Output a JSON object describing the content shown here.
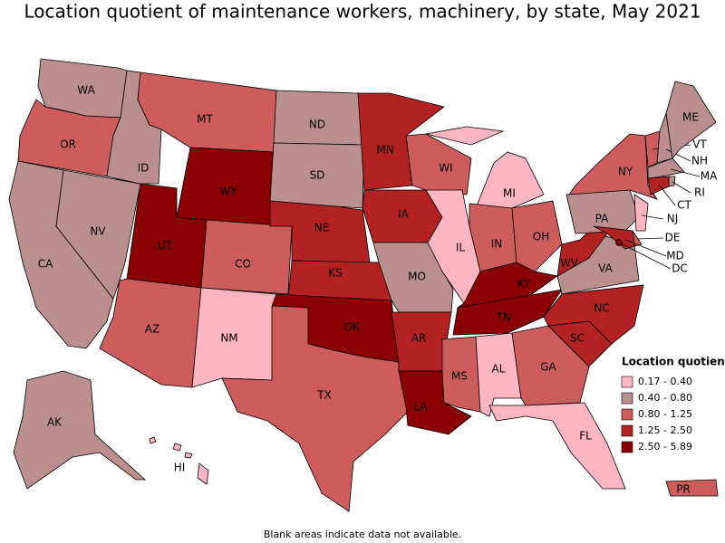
{
  "title": "Location quotient of maintenance workers, machinery, by state, May 2021",
  "legend": {
    "title": "Location quotient",
    "bins": [
      {
        "label": "0.17 - 0.40",
        "color": "#ffb6c1"
      },
      {
        "label": "0.40 - 0.80",
        "color": "#bc8f8f"
      },
      {
        "label": "0.80 - 1.25",
        "color": "#cd5c5c"
      },
      {
        "label": "1.25 - 2.50",
        "color": "#b22222"
      },
      {
        "label": "2.50 - 5.89",
        "color": "#8b0000"
      }
    ]
  },
  "states": [
    {
      "abbr": "WA",
      "color": "#bc8f8f"
    },
    {
      "abbr": "OR",
      "color": "#cd5c5c"
    },
    {
      "abbr": "CA",
      "color": "#bc8f8f"
    },
    {
      "abbr": "NV",
      "color": "#bc8f8f"
    },
    {
      "abbr": "ID",
      "color": "#bc8f8f"
    },
    {
      "abbr": "MT",
      "color": "#cd5c5c"
    },
    {
      "abbr": "WY",
      "color": "#8b0000"
    },
    {
      "abbr": "UT",
      "color": "#8b0000"
    },
    {
      "abbr": "CO",
      "color": "#cd5c5c"
    },
    {
      "abbr": "AZ",
      "color": "#cd5c5c"
    },
    {
      "abbr": "NM",
      "color": "#ffb6c1"
    },
    {
      "abbr": "ND",
      "color": "#bc8f8f"
    },
    {
      "abbr": "SD",
      "color": "#bc8f8f"
    },
    {
      "abbr": "NE",
      "color": "#b22222"
    },
    {
      "abbr": "KS",
      "color": "#b22222"
    },
    {
      "abbr": "OK",
      "color": "#8b0000"
    },
    {
      "abbr": "TX",
      "color": "#cd5c5c"
    },
    {
      "abbr": "MN",
      "color": "#b22222"
    },
    {
      "abbr": "IA",
      "color": "#b22222"
    },
    {
      "abbr": "MO",
      "color": "#bc8f8f"
    },
    {
      "abbr": "AR",
      "color": "#b22222"
    },
    {
      "abbr": "LA",
      "color": "#8b0000"
    },
    {
      "abbr": "WI",
      "color": "#cd5c5c"
    },
    {
      "abbr": "IL",
      "color": "#ffb6c1"
    },
    {
      "abbr": "MI",
      "color": "#ffb6c1"
    },
    {
      "abbr": "IN",
      "color": "#cd5c5c"
    },
    {
      "abbr": "OH",
      "color": "#cd5c5c"
    },
    {
      "abbr": "KY",
      "color": "#8b0000"
    },
    {
      "abbr": "TN",
      "color": "#8b0000"
    },
    {
      "abbr": "MS",
      "color": "#cd5c5c"
    },
    {
      "abbr": "AL",
      "color": "#ffb6c1"
    },
    {
      "abbr": "GA",
      "color": "#cd5c5c"
    },
    {
      "abbr": "FL",
      "color": "#ffb6c1"
    },
    {
      "abbr": "SC",
      "color": "#b22222"
    },
    {
      "abbr": "NC",
      "color": "#b22222"
    },
    {
      "abbr": "VA",
      "color": "#bc8f8f"
    },
    {
      "abbr": "WV",
      "color": "#b22222"
    },
    {
      "abbr": "PA",
      "color": "#bc8f8f"
    },
    {
      "abbr": "NY",
      "color": "#cd5c5c"
    },
    {
      "abbr": "NJ",
      "color": "#ffb6c1"
    },
    {
      "abbr": "DE",
      "color": "#cd5c5c"
    },
    {
      "abbr": "MD",
      "color": "#b22222"
    },
    {
      "abbr": "VT",
      "color": "#cd5c5c"
    },
    {
      "abbr": "NH",
      "color": "#bc8f8f"
    },
    {
      "abbr": "ME",
      "color": "#bc8f8f"
    },
    {
      "abbr": "MA",
      "color": "#bc8f8f"
    },
    {
      "abbr": "RI",
      "color": "#bc8f8f"
    },
    {
      "abbr": "CT",
      "color": "#b22222"
    },
    {
      "abbr": "DC",
      "color": "#8b0000"
    },
    {
      "abbr": "AK",
      "color": "#bc8f8f"
    },
    {
      "abbr": "HI",
      "color": "#ffb6c1"
    },
    {
      "abbr": "PR",
      "color": "#cd5c5c"
    }
  ],
  "note": "Blank areas indicate data not available."
}
